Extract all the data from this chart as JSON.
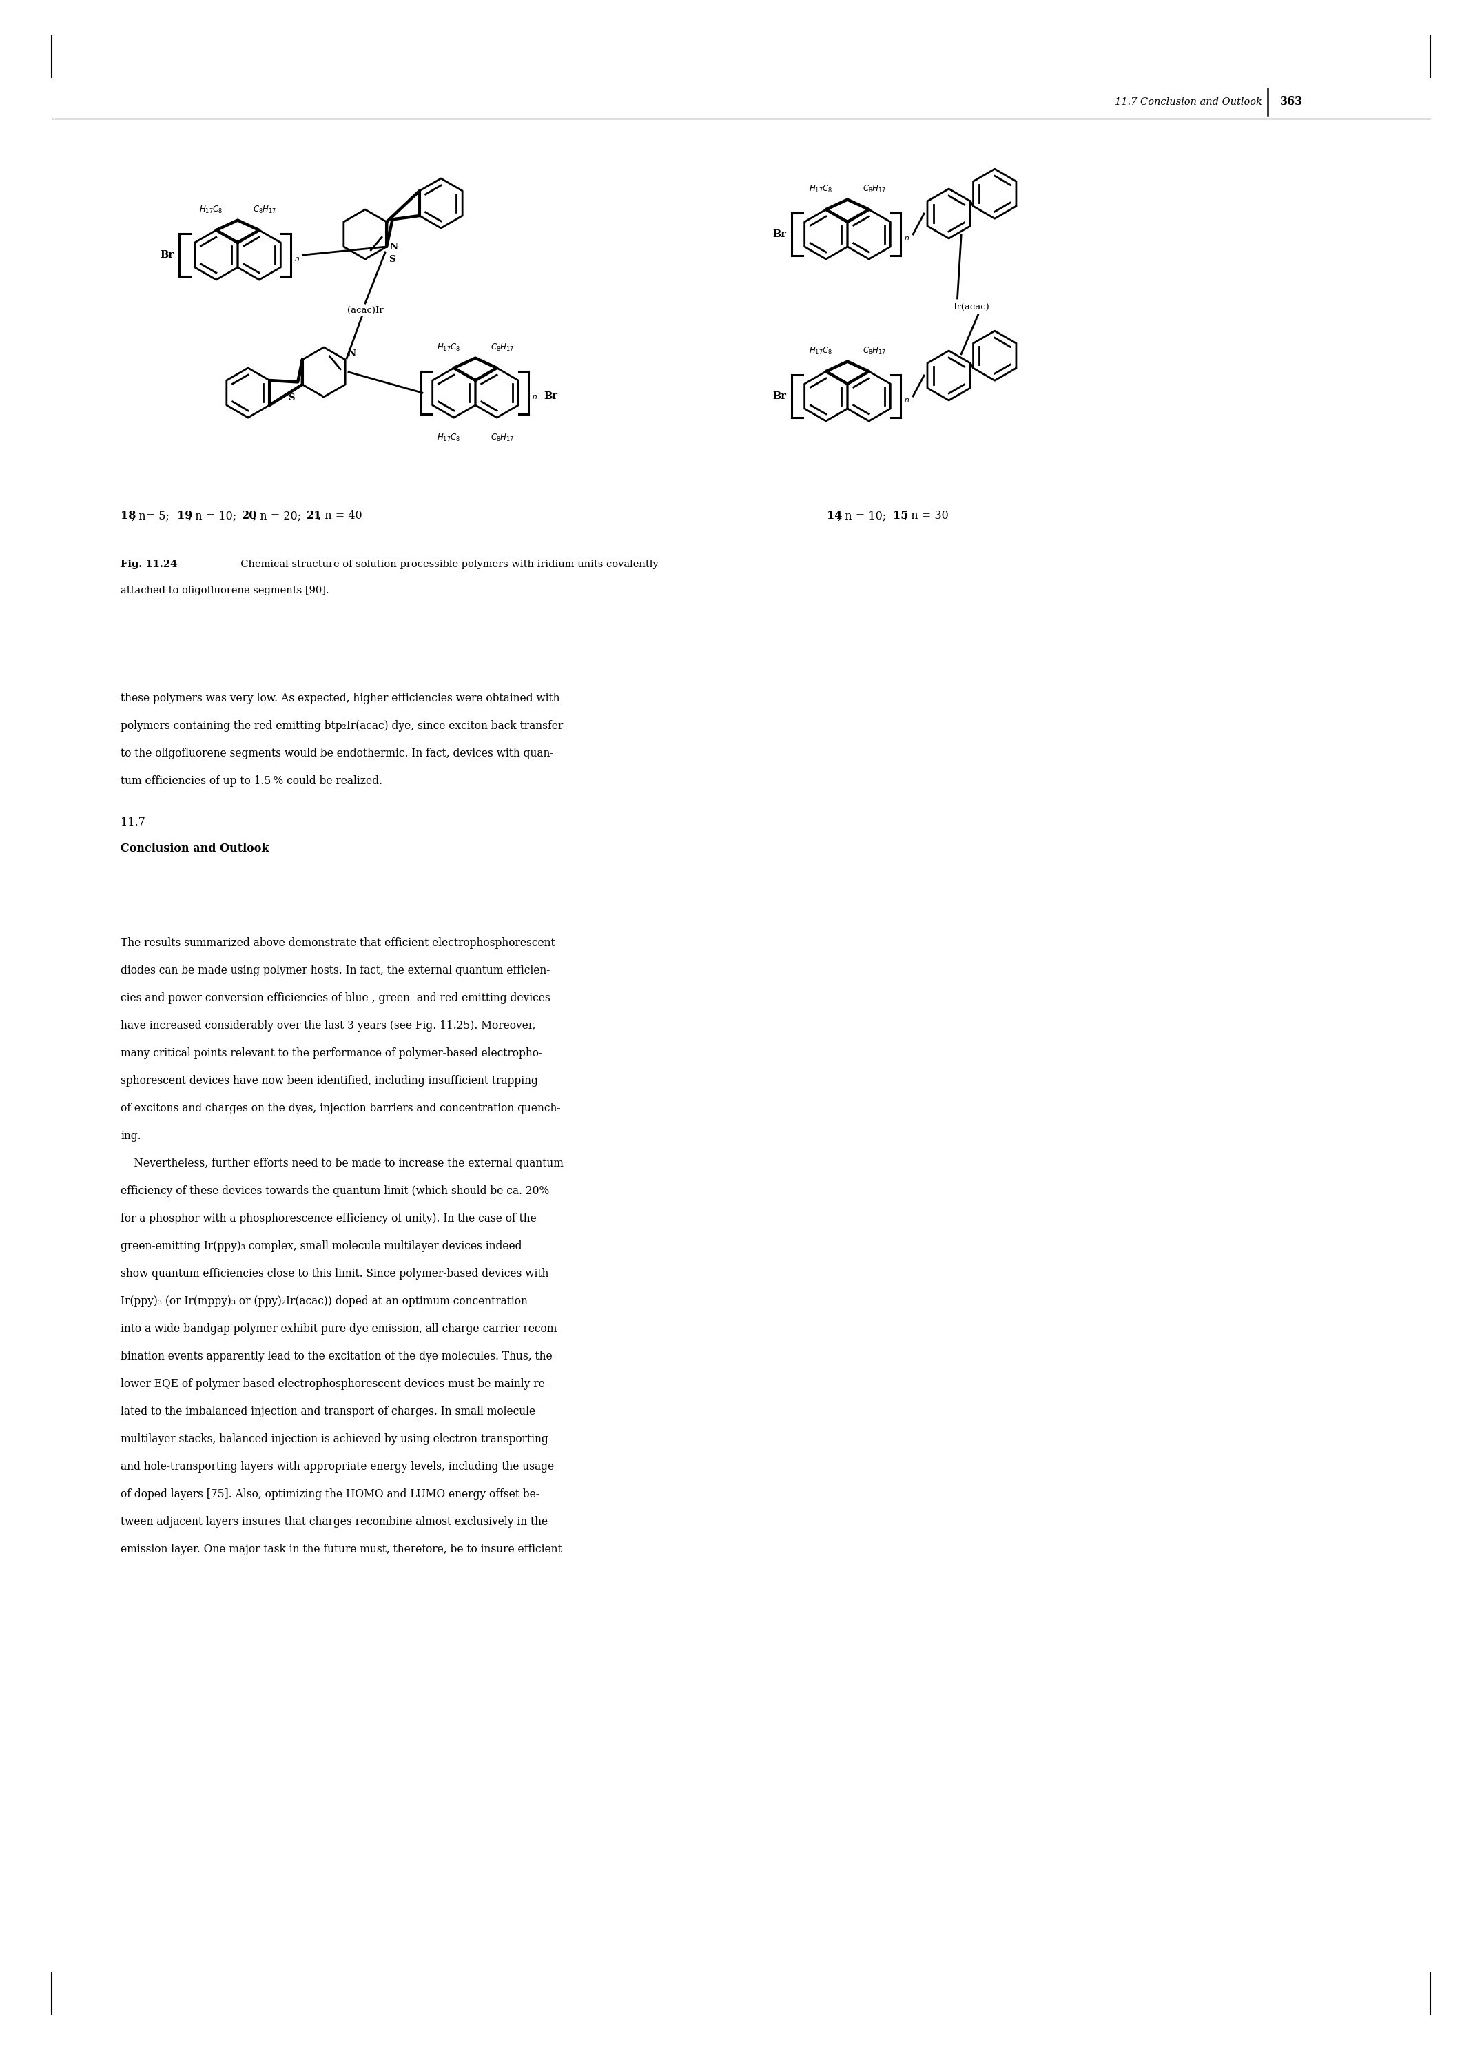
{
  "header_italic": "11.7 Conclusion and Outlook",
  "page_number": "363",
  "caption_bold": "Fig. 11.24",
  "caption_normal": "  Chemical structure of solution-processible polymers with iridium units covalently",
  "caption_line2": "attached to oligofluorene segments [90].",
  "body_text": [
    "these polymers was very low. As expected, higher efficiencies were obtained with",
    "polymers containing the red-emitting btp₂Ir(acac) dye, since exciton back transfer",
    "to the oligofluorene segments would be endothermic. In fact, devices with quan-",
    "tum efficiencies of up to 1.5 % could be realized."
  ],
  "section_number": "11.7",
  "section_title": "Conclusion and Outlook",
  "paragraph_text": [
    "The results summarized above demonstrate that efficient electrophosphorescent",
    "diodes can be made using polymer hosts. In fact, the external quantum efficien-",
    "cies and power conversion efficiencies of blue-, green- and red-emitting devices",
    "have increased considerably over the last 3 years (see Fig. 11.25). Moreover,",
    "many critical points relevant to the performance of polymer-based electropho-",
    "sphorescent devices have now been identified, including insufficient trapping",
    "of excitons and charges on the dyes, injection barriers and concentration quench-",
    "ing.",
    "    Nevertheless, further efforts need to be made to increase the external quantum",
    "efficiency of these devices towards the quantum limit (which should be ca. 20%",
    "for a phosphor with a phosphorescence efficiency of unity). In the case of the",
    "green-emitting Ir(ppy)₃ complex, small molecule multilayer devices indeed",
    "show quantum efficiencies close to this limit. Since polymer-based devices with",
    "Ir(ppy)₃ (or Ir(mppy)₃ or (ppy)₂Ir(acac)) doped at an optimum concentration",
    "into a wide-bandgap polymer exhibit pure dye emission, all charge-carrier recom-",
    "bination events apparently lead to the excitation of the dye molecules. Thus, the",
    "lower EQE of polymer-based electrophosphorescent devices must be mainly re-",
    "lated to the imbalanced injection and transport of charges. In small molecule",
    "multilayer stacks, balanced injection is achieved by using electron-transporting",
    "and hole-transporting layers with appropriate energy levels, including the usage",
    "of doped layers [75]. Also, optimizing the HOMO and LUMO energy offset be-",
    "tween adjacent layers insures that charges recombine almost exclusively in the",
    "emission layer. One major task in the future must, therefore, be to insure efficient"
  ],
  "bg_color": "#ffffff"
}
